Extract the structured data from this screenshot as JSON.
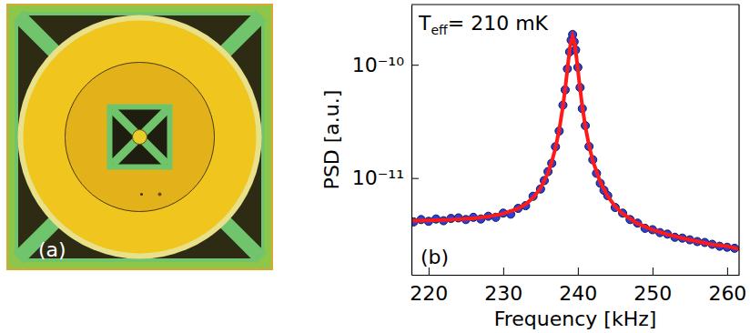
{
  "image_panel": {
    "label": "(a)"
  },
  "chart_data": {
    "type": "scatter",
    "panel_label": "(b)",
    "annotation": {
      "base": "T",
      "subscript": "eff",
      "text": "= 210 mK"
    },
    "x_label": "Frequency [kHz]",
    "y_label": "PSD [a.u.]",
    "log": "y",
    "grid": false,
    "xlim": [
      217.7,
      261.6
    ],
    "ylim": [
      1.4e-12,
      3.4e-10
    ],
    "xticks": [
      220,
      230,
      240,
      250,
      260
    ],
    "yticks": [
      {
        "value": 1e-11,
        "label": "10⁻¹¹"
      },
      {
        "value": 1e-10,
        "label": "10⁻¹⁰"
      }
    ],
    "series": [
      {
        "type": "scatter",
        "color": "#2a3fe0",
        "marker": "circle",
        "x": [
          218,
          219,
          220,
          221,
          222,
          223,
          224,
          225,
          226,
          227,
          228,
          229,
          230,
          231,
          232,
          233,
          234,
          235,
          235.5,
          236,
          236.5,
          237,
          237.5,
          238,
          238.3,
          238.6,
          238.9,
          239.1,
          239.3,
          239.5,
          239.7,
          240,
          240.3,
          240.6,
          241,
          241.5,
          242,
          242.5,
          243,
          243.5,
          244,
          245,
          246,
          247,
          248,
          249,
          250,
          251,
          252,
          253,
          254,
          255,
          256,
          257,
          258,
          259,
          260,
          261
        ],
        "values": [
          4.1e-12,
          4.3e-12,
          4.15e-12,
          4.35e-12,
          4.2e-12,
          4.4e-12,
          4.45e-12,
          4.3e-12,
          4.5e-12,
          4.35e-12,
          4.6e-12,
          4.5e-12,
          4.9e-12,
          4.8e-12,
          5.4e-12,
          5.7e-12,
          6.9e-12,
          8e-12,
          9.5e-12,
          1.14e-11,
          1.35e-11,
          1.89e-11,
          2.6e-11,
          4.4e-11,
          6e-11,
          9.2e-11,
          1.3e-10,
          1.65e-10,
          1.85e-10,
          1.6e-10,
          1.35e-10,
          9.5e-11,
          6.3e-11,
          4.1e-11,
          2.9e-11,
          1.9e-11,
          1.45e-11,
          1.1e-11,
          9e-12,
          7.8e-12,
          7e-12,
          5.5e-12,
          4.9e-12,
          4.3e-12,
          4e-12,
          3.6e-12,
          3.5e-12,
          3.3e-12,
          3.2e-12,
          3e-12,
          2.95e-12,
          2.85e-12,
          2.75e-12,
          2.7e-12,
          2.6e-12,
          2.5e-12,
          2.45e-12,
          2.4e-12
        ]
      },
      {
        "type": "line",
        "color": "#ff1a1a",
        "line_style": "solid",
        "x": [
          217.7,
          220,
          222,
          224,
          226,
          228,
          230,
          232,
          233,
          234,
          235,
          236,
          236.5,
          237,
          237.5,
          238,
          238.4,
          238.7,
          239,
          239.3,
          239.6,
          239.9,
          240.2,
          240.6,
          241,
          241.5,
          242,
          243,
          244,
          245,
          246,
          248,
          250,
          252,
          254,
          256,
          258,
          260,
          261.6
        ],
        "values": [
          4.18e-12,
          4.23e-12,
          4.27e-12,
          4.33e-12,
          4.41e-12,
          4.57e-12,
          4.84e-12,
          5.38e-12,
          5.87e-12,
          6.7e-12,
          8.17e-12,
          1.11e-11,
          1.39e-11,
          1.84e-11,
          2.66e-11,
          4.28e-11,
          6.95e-11,
          1.044e-10,
          1.512e-10,
          1.784e-10,
          1.511e-10,
          1.042e-10,
          6.93e-11,
          4.26e-11,
          2.86e-11,
          1.93e-11,
          1.42e-11,
          9.2e-12,
          6.9e-12,
          5.6e-12,
          4.83e-12,
          3.97e-12,
          3.49e-12,
          3.18e-12,
          2.95e-12,
          2.76e-12,
          2.59e-12,
          2.5e-12,
          2.36e-12
        ]
      }
    ]
  }
}
